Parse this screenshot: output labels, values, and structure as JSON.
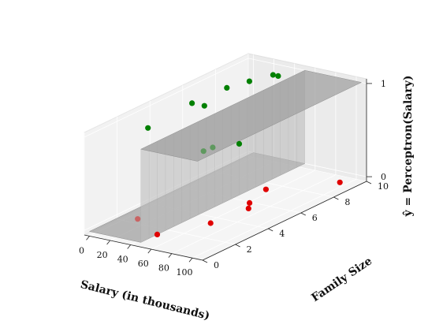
{
  "chart_data": {
    "type": "scatter",
    "projection": "3d",
    "title": "",
    "xlabel": "Salary (in thousands)",
    "ylabel": "Family Size",
    "zlabel": "ŷ = Perceptron(Salary)",
    "xlim": [
      -5,
      110
    ],
    "ylim": [
      0,
      10
    ],
    "zlim": [
      -0.05,
      1.05
    ],
    "xticks": [
      0,
      20,
      40,
      60,
      80,
      100
    ],
    "yticks": [
      0,
      2,
      4,
      6,
      8,
      10
    ],
    "zticks": [
      0,
      1
    ],
    "grid": true,
    "surface": {
      "description": "step-function decision surface",
      "threshold_salary": 50,
      "low_value": 0,
      "high_value": 1,
      "color": "#9e9e9e"
    },
    "series": [
      {
        "color": "#008000",
        "points": [
          {
            "x": 20,
            "y": 5,
            "z": 1
          },
          {
            "x": 22,
            "y": 7,
            "z": 1
          },
          {
            "x": 28,
            "y": 8,
            "z": 1
          },
          {
            "x": 25,
            "y": 2,
            "z": 1
          },
          {
            "x": 35,
            "y": 9,
            "z": 1
          },
          {
            "x": 32,
            "y": 5,
            "z": 1
          },
          {
            "x": 40,
            "y": 9,
            "z": 1
          },
          {
            "x": 50,
            "y": 6,
            "z": 0.55
          },
          {
            "x": 95,
            "y": 1,
            "z": 1
          },
          {
            "x": 96,
            "y": 1.5,
            "z": 1
          }
        ]
      },
      {
        "color": "#e00000",
        "points": [
          {
            "x": 15,
            "y": 2,
            "z": 0
          },
          {
            "x": 50,
            "y": 1,
            "z": 0
          },
          {
            "x": 70,
            "y": 3,
            "z": 0
          },
          {
            "x": 75,
            "y": 5,
            "z": 0
          },
          {
            "x": 60,
            "y": 7,
            "z": 0
          },
          {
            "x": 68,
            "y": 5.5,
            "z": 0
          },
          {
            "x": 100,
            "y": 9,
            "z": 0
          }
        ]
      }
    ]
  }
}
